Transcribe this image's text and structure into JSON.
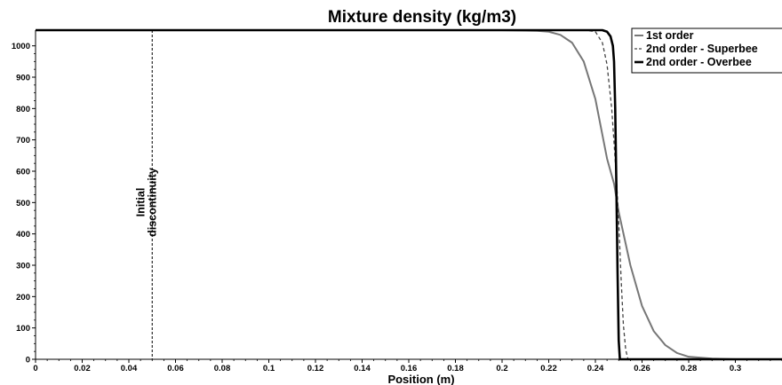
{
  "chart_data": {
    "type": "line",
    "title": "Mixture density (kg/m3)",
    "xlabel": "Position (m)",
    "ylabel": "",
    "xlim": [
      0,
      0.32
    ],
    "ylim": [
      0,
      1050
    ],
    "x_ticks": [
      "0",
      "0.02",
      "0.04",
      "0.06",
      "0.08",
      "0.1",
      "0.12",
      "0.14",
      "0.16",
      "0.18",
      "0.2",
      "0.22",
      "0.24",
      "0.26",
      "0.28",
      "0.3"
    ],
    "y_ticks": [
      "0",
      "100",
      "200",
      "300",
      "400",
      "500",
      "600",
      "700",
      "800",
      "900",
      "1000"
    ],
    "legend_position": "top-right",
    "series": [
      {
        "name": "1st order",
        "color": "#777777",
        "style": "solid",
        "x": [
          0,
          0.2,
          0.215,
          0.22,
          0.225,
          0.23,
          0.235,
          0.24,
          0.245,
          0.248,
          0.25,
          0.255,
          0.26,
          0.265,
          0.27,
          0.275,
          0.28,
          0.29,
          0.3,
          0.32
        ],
        "y": [
          1050,
          1050,
          1048,
          1045,
          1035,
          1010,
          950,
          830,
          640,
          560,
          470,
          300,
          170,
          90,
          45,
          20,
          8,
          2,
          0,
          0
        ]
      },
      {
        "name": "2nd order - Superbee",
        "color": "#444444",
        "style": "dashed",
        "x": [
          0,
          0.236,
          0.24,
          0.243,
          0.245,
          0.247,
          0.249,
          0.25,
          0.251,
          0.252,
          0.253,
          0.254,
          0.32
        ],
        "y": [
          1050,
          1050,
          1045,
          1010,
          940,
          800,
          580,
          440,
          260,
          110,
          30,
          0,
          0
        ]
      },
      {
        "name": "2nd order - Overbee",
        "color": "#000000",
        "style": "solid",
        "x": [
          0,
          0.243,
          0.245,
          0.2465,
          0.2475,
          0.248,
          0.2485,
          0.249,
          0.2495,
          0.25,
          0.2505,
          0.32
        ],
        "y": [
          1050,
          1050,
          1045,
          1030,
          1000,
          950,
          800,
          550,
          280,
          60,
          0,
          0
        ]
      }
    ],
    "annotations": [
      {
        "x": 0.05,
        "lines": [
          "Initial",
          "discontinuity"
        ]
      }
    ]
  }
}
